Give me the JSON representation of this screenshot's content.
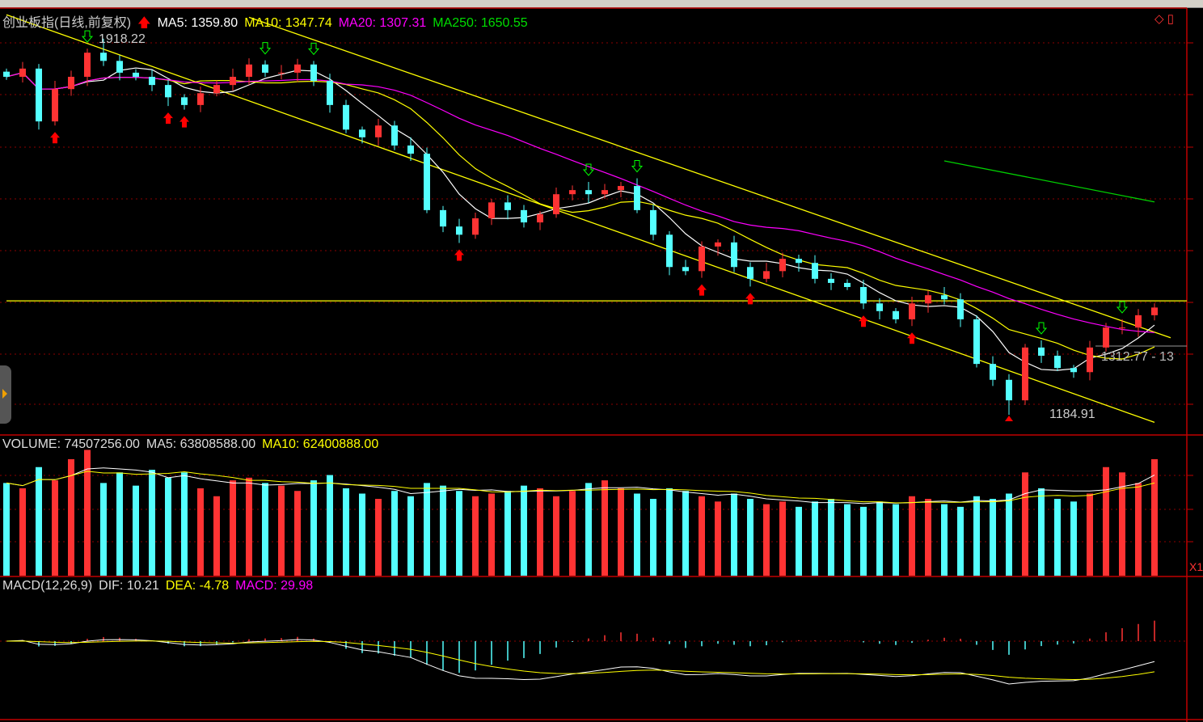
{
  "title": "创业板指(日线,前复权)",
  "price_legend": {
    "ma5": "MA5: 1359.80",
    "ma10": "MA10: 1347.74",
    "ma20": "MA20: 1307.31",
    "ma250": "MA250: 1650.55"
  },
  "volume_legend": {
    "volume": "VOLUME: 74507256.00",
    "ma5": "MA5: 63808588.00",
    "ma10": "MA10: 62400888.00"
  },
  "macd_legend": {
    "name": "MACD(12,26,9)",
    "dif": "DIF: 10.21",
    "dea": "DEA: -4.78",
    "macd": "MACD: 29.98"
  },
  "labels": {
    "high": "1918.22",
    "low": "1184.91",
    "cursor": "1312.77 - 13",
    "zoom": "X1"
  },
  "colors": {
    "up": "#ff3333",
    "down": "#54ffff",
    "ma5": "#ffffff",
    "ma10": "#ffff00",
    "ma20": "#ff00ff",
    "ma250": "#00d000",
    "grid": "#8b0000",
    "axis": "#c00000"
  },
  "chart_data": {
    "type": "candlestick",
    "ylim": [
      1147,
      1978
    ],
    "high": 1918.22,
    "low": 1184.91,
    "closes": [
      1844,
      1860,
      1757,
      1820,
      1844,
      1891,
      1875,
      1852,
      1844,
      1828,
      1804,
      1789,
      1812,
      1828,
      1844,
      1868,
      1852,
      1852,
      1868,
      1836,
      1789,
      1741,
      1726,
      1749,
      1710,
      1694,
      1584,
      1552,
      1536,
      1568,
      1599,
      1584,
      1560,
      1576,
      1615,
      1623,
      1615,
      1623,
      1631,
      1584,
      1536,
      1473,
      1465,
      1513,
      1521,
      1473,
      1450,
      1465,
      1489,
      1481,
      1450,
      1442,
      1434,
      1402,
      1387,
      1371,
      1402,
      1418,
      1410,
      1371,
      1284,
      1253,
      1213,
      1316,
      1300,
      1276,
      1268,
      1316,
      1355,
      1355,
      1379,
      1394
    ],
    "volumes": [
      70,
      66,
      82,
      72,
      88,
      95,
      70,
      78,
      68,
      80,
      74,
      78,
      66,
      60,
      72,
      74,
      70,
      68,
      64,
      72,
      76,
      66,
      62,
      58,
      64,
      60,
      70,
      68,
      64,
      60,
      62,
      64,
      68,
      66,
      60,
      64,
      70,
      72,
      66,
      62,
      58,
      66,
      64,
      60,
      56,
      62,
      58,
      54,
      56,
      52,
      56,
      58,
      54,
      52,
      56,
      54,
      60,
      58,
      54,
      52,
      60,
      58,
      62,
      78,
      66,
      58,
      56,
      62,
      82,
      78,
      70,
      88
    ],
    "volume_ylim": [
      0,
      102
    ],
    "trendlines": [
      {
        "from": [
          0,
          1965
        ],
        "to": [
          71,
          1170
        ],
        "color": "#ffff00"
      },
      {
        "from": [
          15,
          1960
        ],
        "to": [
          72,
          1335
        ],
        "color": "#ffff00"
      },
      {
        "from": [
          0,
          1407
        ],
        "to": [
          73,
          1407
        ],
        "color": "#ffff00"
      }
    ],
    "ma250_segment": {
      "from": [
        58,
        1680
      ],
      "to": [
        71,
        1600
      ]
    },
    "signals": [
      {
        "i": 3,
        "type": "buy"
      },
      {
        "i": 10,
        "type": "buy"
      },
      {
        "i": 11,
        "type": "buy"
      },
      {
        "i": 28,
        "type": "buy"
      },
      {
        "i": 43,
        "type": "buy"
      },
      {
        "i": 46,
        "type": "buy"
      },
      {
        "i": 53,
        "type": "buy"
      },
      {
        "i": 56,
        "type": "buy"
      },
      {
        "i": 5,
        "type": "sell"
      },
      {
        "i": 16,
        "type": "sell"
      },
      {
        "i": 19,
        "type": "sell"
      },
      {
        "i": 36,
        "type": "sell"
      },
      {
        "i": 39,
        "type": "sell"
      },
      {
        "i": 64,
        "type": "sell"
      },
      {
        "i": 69,
        "type": "sell"
      }
    ]
  }
}
